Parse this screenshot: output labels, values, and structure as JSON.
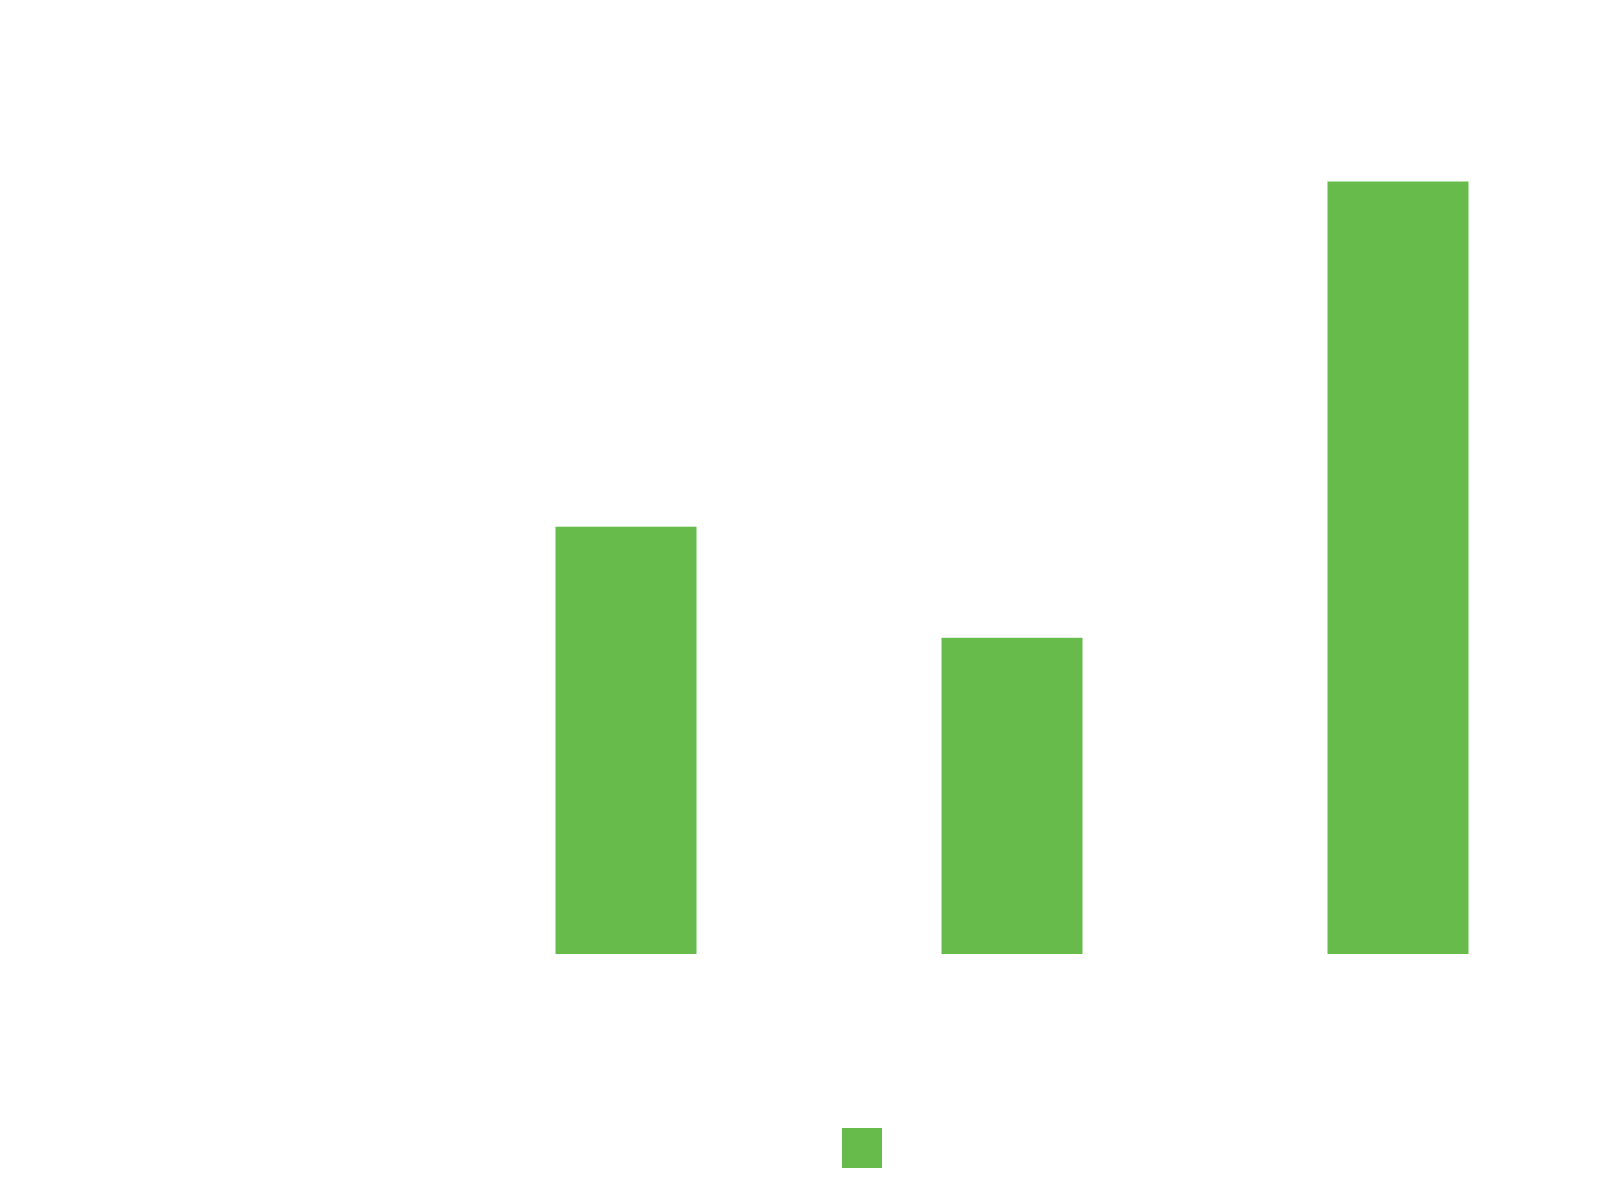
{
  "chart_data": {
    "type": "bar",
    "title": "",
    "xlabel": "",
    "ylabel": "",
    "categories": [
      "",
      "",
      ""
    ],
    "series": [
      {
        "values": [
          42.7,
          31.6,
          77.2
        ],
        "color": "#66bb4b"
      }
    ],
    "ylim": [
      0,
      100
    ],
    "grid": false,
    "legend": {
      "position": "bottom",
      "entries": [
        ""
      ]
    }
  }
}
